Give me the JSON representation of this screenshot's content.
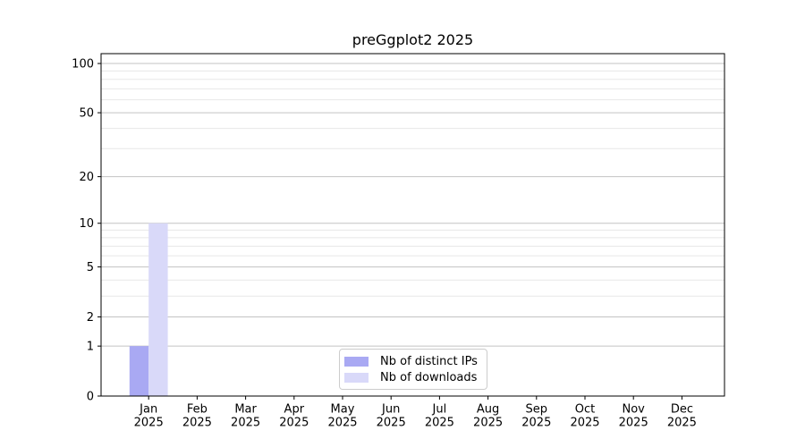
{
  "figure": {
    "title": "preGgplot2 2025"
  },
  "chart_data": {
    "type": "bar",
    "title": "preGgplot2 2025",
    "categories": [
      "Jan",
      "Feb",
      "Mar",
      "Apr",
      "May",
      "Jun",
      "Jul",
      "Aug",
      "Sep",
      "Oct",
      "Nov",
      "Dec"
    ],
    "x_tick_year": "2025",
    "series": [
      {
        "name": "Nb of distinct IPs",
        "color": "#a9a9f3",
        "values": [
          1,
          0,
          0,
          0,
          0,
          0,
          0,
          0,
          0,
          0,
          0,
          0
        ]
      },
      {
        "name": "Nb of downloads",
        "color": "#d9d9f9",
        "values": [
          10,
          0,
          0,
          0,
          0,
          0,
          0,
          0,
          0,
          0,
          0,
          0
        ]
      }
    ],
    "xlabel": "",
    "ylabel": "",
    "yscale": "log1p",
    "ylim": [
      0,
      114.8
    ],
    "y_major_ticks": [
      0,
      1,
      2,
      5,
      10,
      20,
      50,
      100
    ],
    "y_minor_gridlines": [
      3,
      4,
      6,
      7,
      8,
      9,
      30,
      40,
      60,
      70,
      80,
      90
    ],
    "grid": true,
    "legend": {
      "position": "lower center",
      "labels": [
        "Nb of distinct IPs",
        "Nb of downloads"
      ]
    }
  },
  "style_colors": {
    "grid_major": "#c3c3c3",
    "grid_minor": "#e7e7e7",
    "spine": "#000000",
    "text": "#000000",
    "legend_border": "#cccccc",
    "background": "#ffffff"
  }
}
